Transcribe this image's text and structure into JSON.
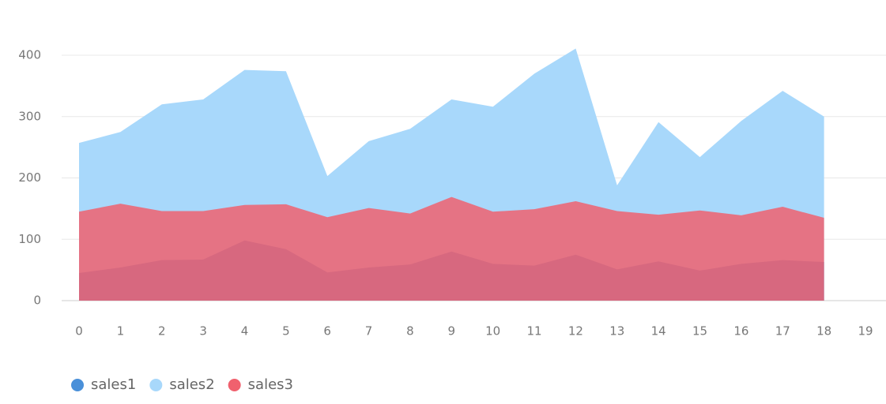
{
  "chart_data": {
    "type": "area",
    "x": [
      0,
      1,
      2,
      3,
      4,
      5,
      6,
      7,
      8,
      9,
      10,
      11,
      12,
      13,
      14,
      15,
      16,
      17,
      18
    ],
    "xlim": [
      0,
      19
    ],
    "xticks": [
      0,
      1,
      2,
      3,
      4,
      5,
      6,
      7,
      8,
      9,
      10,
      11,
      12,
      13,
      14,
      15,
      16,
      17,
      18,
      19
    ],
    "ylim": [
      0,
      400
    ],
    "yticks": [
      0,
      100,
      200,
      300,
      400
    ],
    "grid": true,
    "legend": "bottom-left",
    "series": [
      {
        "name": "sales1",
        "color": "#4a90d9",
        "values": [
          45,
          54,
          66,
          67,
          98,
          84,
          46,
          54,
          59,
          80,
          60,
          57,
          75,
          51,
          64,
          49,
          60,
          66,
          63
        ]
      },
      {
        "name": "sales2",
        "color": "#a8d8fb",
        "values": [
          257,
          275,
          320,
          328,
          376,
          374,
          203,
          260,
          280,
          328,
          316,
          370,
          411,
          188,
          291,
          234,
          293,
          342,
          300
        ]
      },
      {
        "name": "sales3",
        "color": "#f0616e",
        "values": [
          145,
          158,
          146,
          146,
          156,
          157,
          136,
          151,
          142,
          169,
          145,
          149,
          162,
          146,
          140,
          147,
          139,
          153,
          135
        ]
      }
    ]
  }
}
